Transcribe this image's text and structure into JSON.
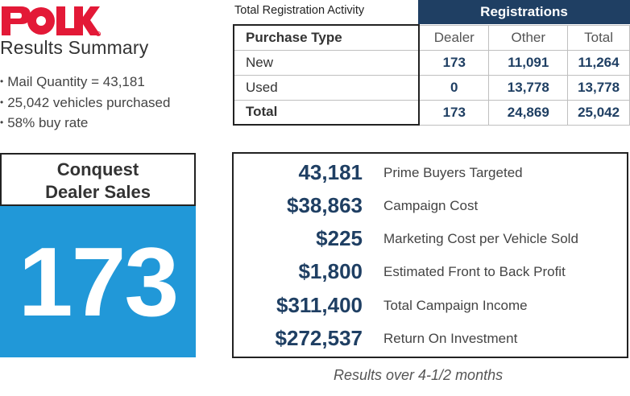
{
  "brand": {
    "logo_text": "POLK",
    "logo_color": "#e31937"
  },
  "summary": {
    "title": "Results Summary",
    "bullets": [
      "Mail Quantity = 43,181",
      "25,042 vehicles purchased",
      "58% buy rate"
    ]
  },
  "registrations": {
    "caption": "Total Registration Activity",
    "header": "Registrations",
    "columns": [
      "Purchase Type",
      "Dealer",
      "Other",
      "Total"
    ],
    "rows": [
      {
        "type": "New",
        "dealer": "173",
        "other": "11,091",
        "total": "11,264"
      },
      {
        "type": "Used",
        "dealer": "0",
        "other": "13,778",
        "total": "13,778"
      },
      {
        "type": "Total",
        "dealer": "173",
        "other": "24,869",
        "total": "25,042"
      }
    ]
  },
  "conquest": {
    "title_line1": "Conquest",
    "title_line2": "Dealer Sales",
    "value": "173"
  },
  "metrics": [
    {
      "value": "43,181",
      "label": "Prime Buyers Targeted"
    },
    {
      "value": "$38,863",
      "label": "Campaign Cost"
    },
    {
      "value": "$225",
      "label": "Marketing Cost per Vehicle Sold"
    },
    {
      "value": "$1,800",
      "label": "Estimated Front to Back Profit"
    },
    {
      "value": "$311,400",
      "label": "Total Campaign Income"
    },
    {
      "value": "$272,537",
      "label": "Return On Investment"
    }
  ],
  "footnote": "Results over 4-1/2 months",
  "colors": {
    "navy": "#1f3f63",
    "blue": "#2198d8",
    "red": "#e31937"
  }
}
